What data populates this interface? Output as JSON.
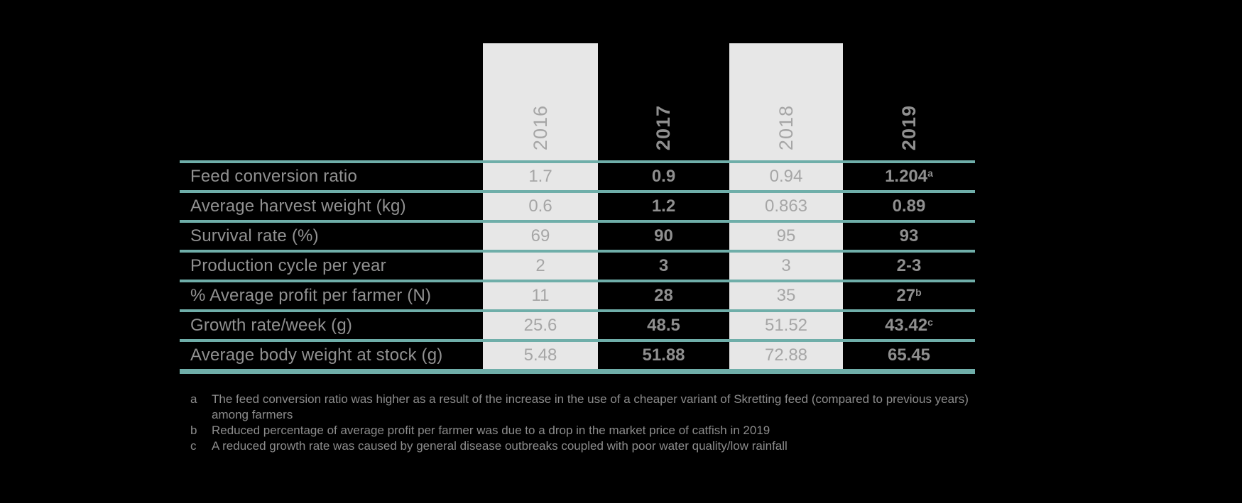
{
  "colors": {
    "background": "#000000",
    "band_gray": "#E7E7E7",
    "separator_teal": "#6FAEA9",
    "label_gray": "#919191",
    "band_value_gray": "#A6A6A6",
    "dark_value_gray": "#8F8F8F"
  },
  "chart_data": {
    "type": "table",
    "categories": [
      "2016",
      "2017",
      "2018",
      "2019"
    ],
    "series": [
      {
        "name": "Feed conversion ratio",
        "values": [
          {
            "v": "1.7",
            "sup": ""
          },
          {
            "v": "0.9",
            "sup": ""
          },
          {
            "v": "0.94",
            "sup": ""
          },
          {
            "v": "1.204",
            "sup": "a"
          }
        ]
      },
      {
        "name": "Average harvest weight (kg)",
        "values": [
          {
            "v": "0.6",
            "sup": ""
          },
          {
            "v": "1.2",
            "sup": ""
          },
          {
            "v": "0.863",
            "sup": ""
          },
          {
            "v": "0.89",
            "sup": ""
          }
        ]
      },
      {
        "name": "Survival rate (%)",
        "values": [
          {
            "v": "69",
            "sup": ""
          },
          {
            "v": "90",
            "sup": ""
          },
          {
            "v": "95",
            "sup": ""
          },
          {
            "v": "93",
            "sup": ""
          }
        ]
      },
      {
        "name": "Production cycle per year",
        "values": [
          {
            "v": "2",
            "sup": ""
          },
          {
            "v": "3",
            "sup": ""
          },
          {
            "v": "3",
            "sup": ""
          },
          {
            "v": "2-3",
            "sup": ""
          }
        ]
      },
      {
        "name": "% Average profit per farmer (N)",
        "values": [
          {
            "v": "11",
            "sup": ""
          },
          {
            "v": "28",
            "sup": ""
          },
          {
            "v": "35",
            "sup": ""
          },
          {
            "v": "27",
            "sup": "b"
          }
        ]
      },
      {
        "name": "Growth rate/week (g)",
        "values": [
          {
            "v": "25.6",
            "sup": ""
          },
          {
            "v": "48.5",
            "sup": ""
          },
          {
            "v": "51.52",
            "sup": ""
          },
          {
            "v": "43.42",
            "sup": "c"
          }
        ]
      },
      {
        "name": "Average body weight at stock (g)",
        "values": [
          {
            "v": "5.48",
            "sup": ""
          },
          {
            "v": "51.88",
            "sup": ""
          },
          {
            "v": "72.88",
            "sup": ""
          },
          {
            "v": "65.45",
            "sup": ""
          }
        ]
      }
    ],
    "footnotes": [
      {
        "marker": "a",
        "text": "The feed conversion ratio was higher as a result of the increase in the use of a cheaper variant of Skretting feed (compared to previous years) among farmers"
      },
      {
        "marker": "b",
        "text": "Reduced percentage of average profit per farmer was due to a drop in the market price of catfish in 2019"
      },
      {
        "marker": "c",
        "text": "A reduced growth rate was caused by general disease outbreaks coupled with poor water quality/low rainfall"
      }
    ],
    "layout": {
      "banded_columns": [
        "2016",
        "2018"
      ],
      "grid": "horizontal teal separators",
      "legend": "none"
    }
  }
}
